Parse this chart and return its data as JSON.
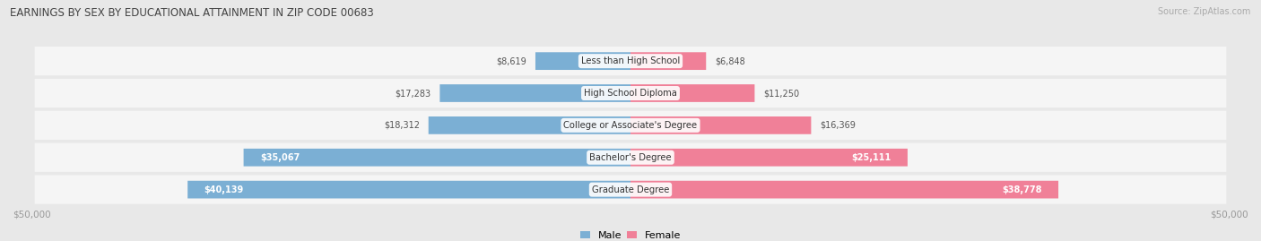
{
  "title": "EARNINGS BY SEX BY EDUCATIONAL ATTAINMENT IN ZIP CODE 00683",
  "source": "Source: ZipAtlas.com",
  "categories": [
    "Less than High School",
    "High School Diploma",
    "College or Associate's Degree",
    "Bachelor's Degree",
    "Graduate Degree"
  ],
  "male_values": [
    8619,
    17283,
    18312,
    35067,
    40139
  ],
  "female_values": [
    6848,
    11250,
    16369,
    25111,
    38778
  ],
  "male_color": "#7bafd4",
  "female_color": "#f08098",
  "max_value": 50000,
  "bg_color": "#e8e8e8",
  "row_bg": "#f7f7f7",
  "row_bg_alt": "#efefef",
  "label_color": "#444444",
  "axis_label_color": "#888888",
  "inside_label_color": "#ffffff",
  "outside_label_color": "#666666"
}
